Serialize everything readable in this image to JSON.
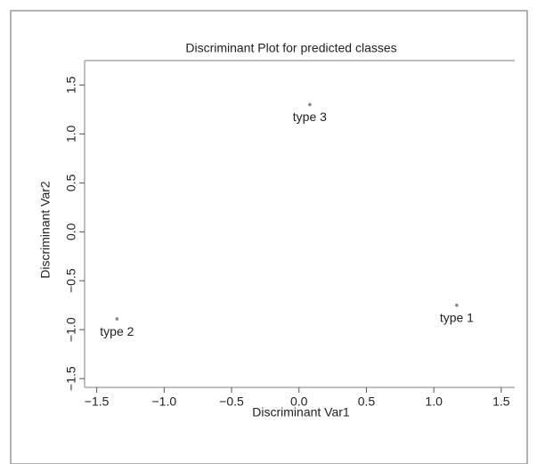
{
  "chart_data": {
    "type": "scatter",
    "title": "Discriminant Plot for predicted classes",
    "x_label": "Discriminant Var1",
    "y_label": "Discriminant Var2",
    "x": [
      1.17,
      -1.35,
      0.08
    ],
    "y": [
      -0.75,
      -0.89,
      1.3
    ],
    "point_labels": [
      "type 1",
      "type 2",
      "type 3"
    ],
    "color": "#888888",
    "xlim": [
      -1.59,
      1.6
    ],
    "ylim": [
      -1.59,
      1.75
    ],
    "xticks": [
      {
        "value": -1.5,
        "label": "−1.5"
      },
      {
        "value": -1,
        "label": "−1.0"
      },
      {
        "value": -0.5,
        "label": "−0.5"
      },
      {
        "value": 0,
        "label": "0.0"
      },
      0.5,
      {
        "value": 1,
        "label": "1.0"
      },
      1.5
    ],
    "yticks": [
      {
        "value": -1.5,
        "label": "−1.5"
      },
      {
        "value": -1,
        "label": "−1.0"
      },
      {
        "value": -0.5,
        "label": "−0.5"
      },
      {
        "value": 0,
        "label": "0.0"
      },
      0.5,
      {
        "value": 1,
        "label": "1.0"
      },
      1.5
    ]
  }
}
